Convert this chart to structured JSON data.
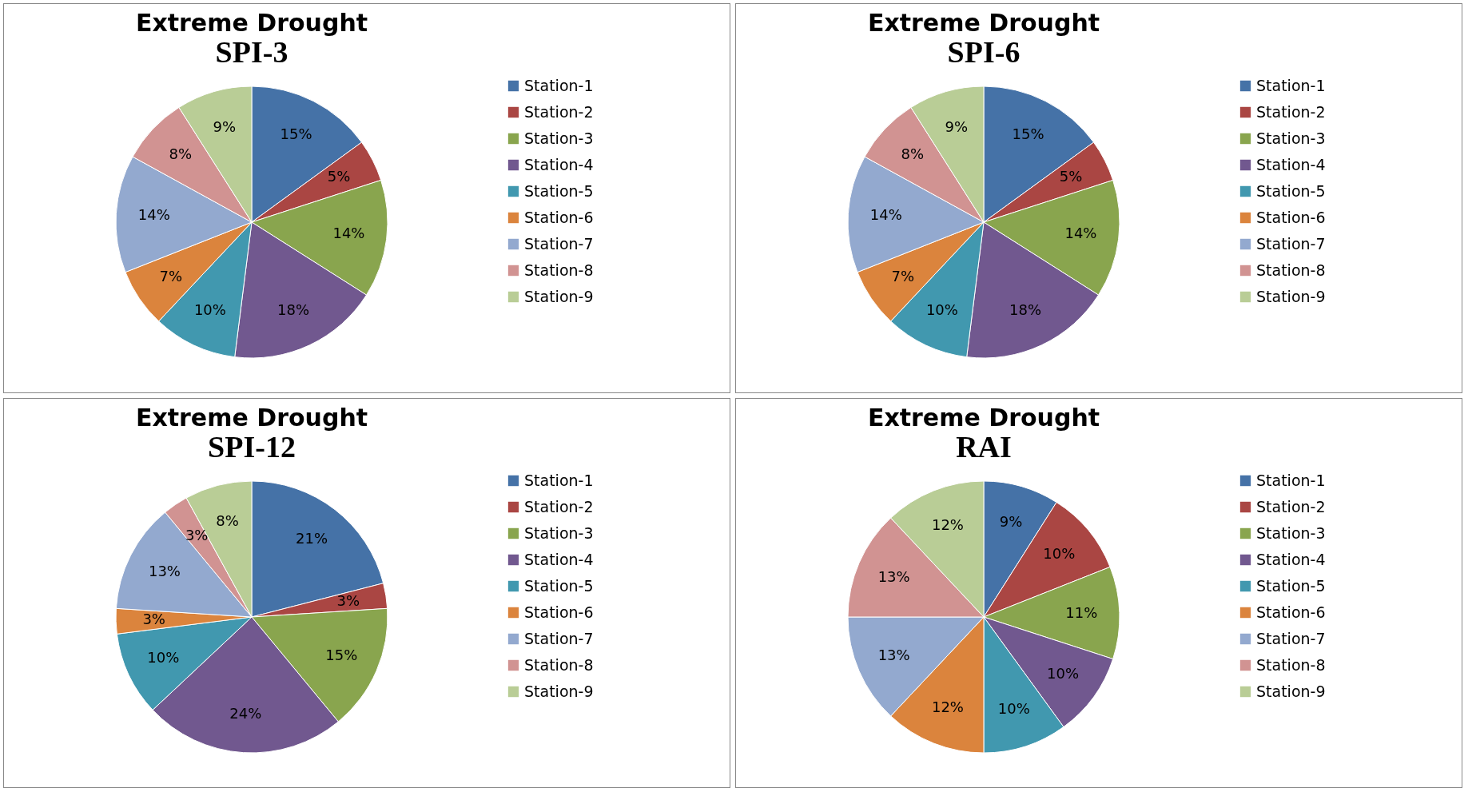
{
  "chart_data": [
    {
      "type": "pie",
      "title": "Extreme Drought",
      "subtitle": "SPI-3",
      "legend": "right",
      "categories": [
        "Station-1",
        "Station-2",
        "Station-3",
        "Station-4",
        "Station-5",
        "Station-6",
        "Station-7",
        "Station-8",
        "Station-9"
      ],
      "values": [
        15,
        5,
        14,
        18,
        10,
        7,
        14,
        8,
        9
      ],
      "value_labels": [
        "15%",
        "5%",
        "14%",
        "18%",
        "10%",
        "7%",
        "14%",
        "8%",
        "9%"
      ],
      "colors": [
        "#4572a7",
        "#aa4643",
        "#89a54e",
        "#71588f",
        "#4198af",
        "#db843d",
        "#93a9cf",
        "#d19392",
        "#b9cd96"
      ]
    },
    {
      "type": "pie",
      "title": "Extreme Drought",
      "subtitle": "SPI-6",
      "legend": "right",
      "categories": [
        "Station-1",
        "Station-2",
        "Station-3",
        "Station-4",
        "Station-5",
        "Station-6",
        "Station-7",
        "Station-8",
        "Station-9"
      ],
      "values": [
        15,
        5,
        14,
        18,
        10,
        7,
        14,
        8,
        9
      ],
      "value_labels": [
        "15%",
        "5%",
        "14%",
        "18%",
        "10%",
        "7%",
        "14%",
        "8%",
        "9%"
      ],
      "colors": [
        "#4572a7",
        "#aa4643",
        "#89a54e",
        "#71588f",
        "#4198af",
        "#db843d",
        "#93a9cf",
        "#d19392",
        "#b9cd96"
      ]
    },
    {
      "type": "pie",
      "title": "Extreme Drought",
      "subtitle": "SPI-12",
      "legend": "right",
      "categories": [
        "Station-1",
        "Station-2",
        "Station-3",
        "Station-4",
        "Station-5",
        "Station-6",
        "Station-7",
        "Station-8",
        "Station-9"
      ],
      "values": [
        21,
        3,
        15,
        24,
        10,
        3,
        13,
        3,
        8
      ],
      "value_labels": [
        "21%",
        "3%",
        "15%",
        "24%",
        "10%",
        "3%",
        "13%",
        "3%",
        "8%"
      ],
      "colors": [
        "#4572a7",
        "#aa4643",
        "#89a54e",
        "#71588f",
        "#4198af",
        "#db843d",
        "#93a9cf",
        "#d19392",
        "#b9cd96"
      ]
    },
    {
      "type": "pie",
      "title": "Extreme Drought",
      "subtitle": "RAI",
      "legend": "right",
      "categories": [
        "Station-1",
        "Station-2",
        "Station-3",
        "Station-4",
        "Station-5",
        "Station-6",
        "Station-7",
        "Station-8",
        "Station-9"
      ],
      "values": [
        9,
        10,
        11,
        10,
        10,
        12,
        13,
        13,
        12
      ],
      "value_labels": [
        "9%",
        "10%",
        "11%",
        "10%",
        "10%",
        "12%",
        "13%",
        "13%",
        "12%"
      ],
      "colors": [
        "#4572a7",
        "#aa4643",
        "#89a54e",
        "#71588f",
        "#4198af",
        "#db843d",
        "#93a9cf",
        "#d19392",
        "#b9cd96"
      ]
    }
  ]
}
